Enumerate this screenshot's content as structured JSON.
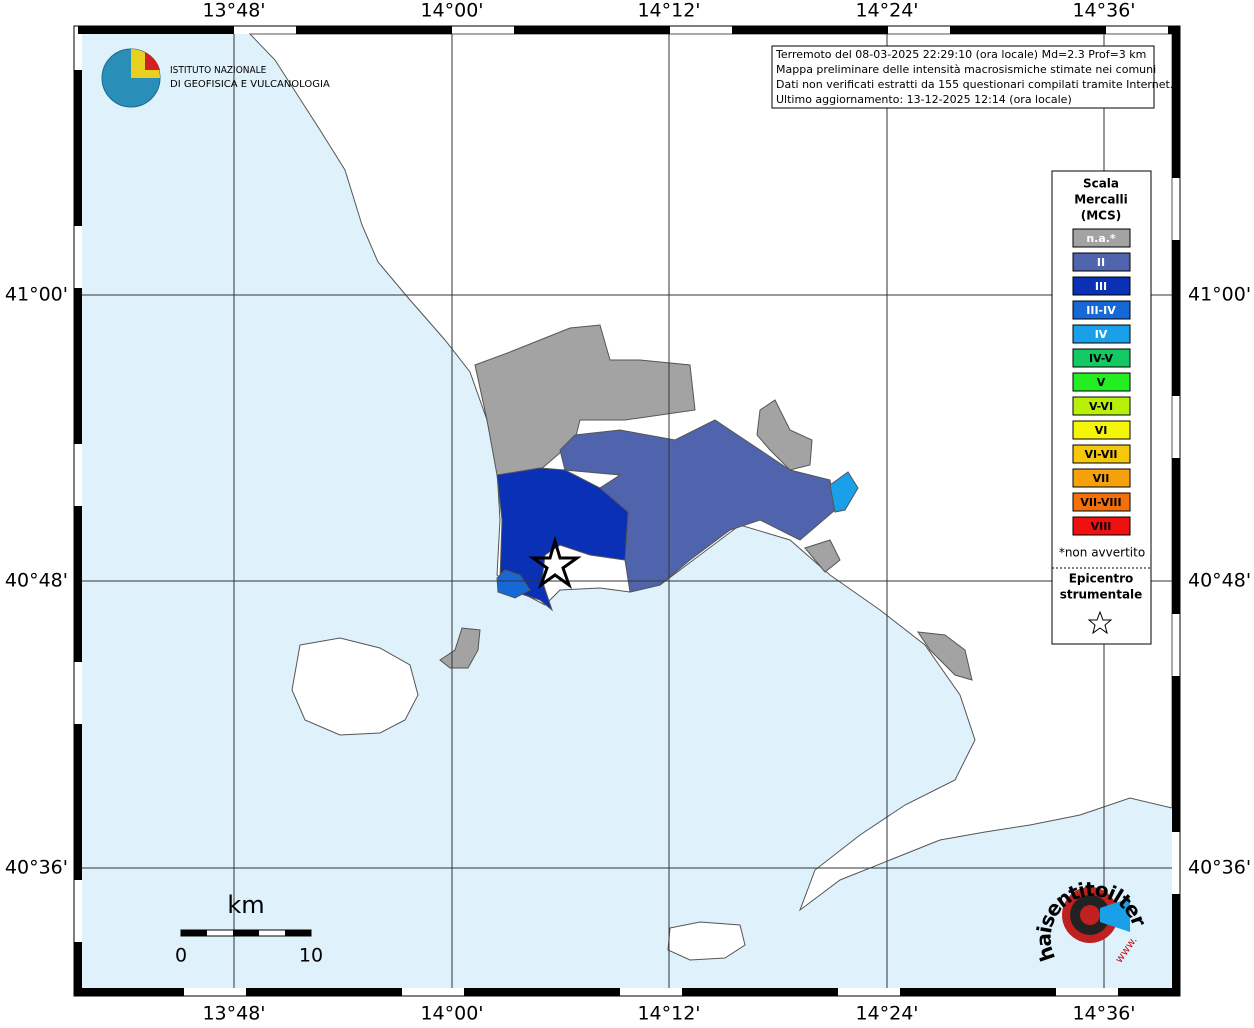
{
  "header": {
    "institute_line1": "ISTITUTO NAZIONALE",
    "institute_line2": "DI GEOFISICA E VULCANOLOGIA"
  },
  "info_box": {
    "lines": [
      "Terremoto del 08-03-2025 22:29:10 (ora locale) Md=2.3 Prof=3 km",
      "Mappa preliminare delle intensità macrosismiche stimate nei comuni",
      "Dati non verificati estratti da 155 questionari compilati tramite Internet.",
      "Ultimo aggiornamento: 13-12-2025 12:14 (ora locale)"
    ]
  },
  "longitude_labels": [
    "13°48'",
    "14°00'",
    "14°12'",
    "14°24'",
    "14°36'"
  ],
  "latitude_labels": [
    "41°00'",
    "40°48'",
    "40°36'"
  ],
  "legend": {
    "title_lines": [
      "Scala",
      "Mercalli",
      "(MCS)"
    ],
    "entries": [
      {
        "label": "n.a.*",
        "color": "#a3a3a3"
      },
      {
        "label": "II",
        "color": "#5064ae"
      },
      {
        "label": "III",
        "color": "#0a30b6"
      },
      {
        "label": "III-IV",
        "color": "#1668d6"
      },
      {
        "label": "IV",
        "color": "#1aa0e8"
      },
      {
        "label": "IV-V",
        "color": "#14c864"
      },
      {
        "label": "V",
        "color": "#22ee22"
      },
      {
        "label": "V-VI",
        "color": "#b8f00a"
      },
      {
        "label": "VI",
        "color": "#f5f50a"
      },
      {
        "label": "VI-VII",
        "color": "#f5c80a"
      },
      {
        "label": "VII",
        "color": "#f5a20a"
      },
      {
        "label": "VII-VIII",
        "color": "#f5700a"
      },
      {
        "label": "VIII",
        "color": "#f01010"
      }
    ],
    "note": "*non avvertito",
    "epicenter_lines": [
      "Epicentro",
      "strumentale"
    ]
  },
  "scale_bar": {
    "unit": "km",
    "start": "0",
    "end": "10"
  },
  "logo": {
    "text": "haisentitoilterremoto.it",
    "prefix": "www."
  }
}
